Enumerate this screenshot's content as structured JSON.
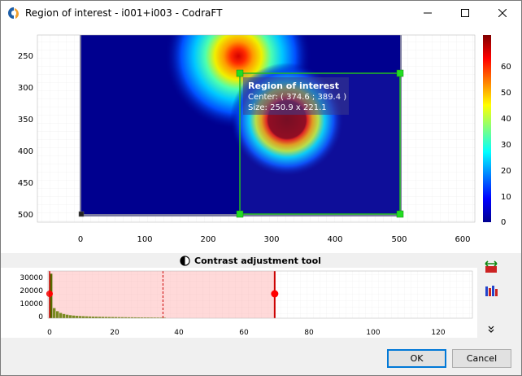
{
  "window": {
    "title": "Region of interest - i001+i003 - CodraFT"
  },
  "main_plot": {
    "x_ticks": [
      "0",
      "100",
      "200",
      "300",
      "400",
      "500",
      "600"
    ],
    "y_ticks": [
      "250",
      "300",
      "350",
      "400",
      "450",
      "500"
    ],
    "colorbar_ticks": [
      "0",
      "10",
      "20",
      "30",
      "40",
      "50",
      "60"
    ],
    "roi_label": {
      "title": "Region of interest",
      "center": "Center: ( 374.6 ; 389.4 )",
      "size": "Size: 250.9 x 221.1"
    },
    "colors": {
      "roi": "#22bb22",
      "handle": "#22dd22",
      "background": "#00008f"
    }
  },
  "contrast": {
    "title": "Contrast adjustment tool",
    "y_ticks": [
      "30000",
      "20000",
      "10000",
      "0"
    ],
    "x_ticks": [
      "0",
      "20",
      "40",
      "60",
      "80",
      "100",
      "120"
    ]
  },
  "chart_data": {
    "type": "bar",
    "title": "Contrast adjustment tool",
    "xlabel": "",
    "ylabel": "",
    "xlim": [
      0,
      130
    ],
    "ylim": [
      0,
      35000
    ],
    "x": [
      0,
      1,
      2,
      3,
      4,
      5,
      6,
      7,
      8,
      9,
      10,
      11,
      12,
      13,
      14,
      15,
      16,
      17,
      18,
      19,
      20,
      21,
      22,
      23,
      24,
      25,
      26,
      27,
      28,
      29,
      30,
      31,
      32,
      33,
      34,
      35
    ],
    "values": [
      33000,
      7500,
      5200,
      3900,
      3100,
      2600,
      2200,
      1950,
      1750,
      1600,
      1480,
      1380,
      1290,
      1210,
      1140,
      1080,
      1020,
      970,
      920,
      880,
      840,
      800,
      760,
      730,
      700,
      670,
      640,
      610,
      580,
      560,
      540,
      520,
      500,
      480,
      450,
      420
    ],
    "range_min": 0,
    "range_max": 69.5,
    "dashed_marker": 35
  },
  "buttons": {
    "ok": "OK",
    "cancel": "Cancel"
  }
}
